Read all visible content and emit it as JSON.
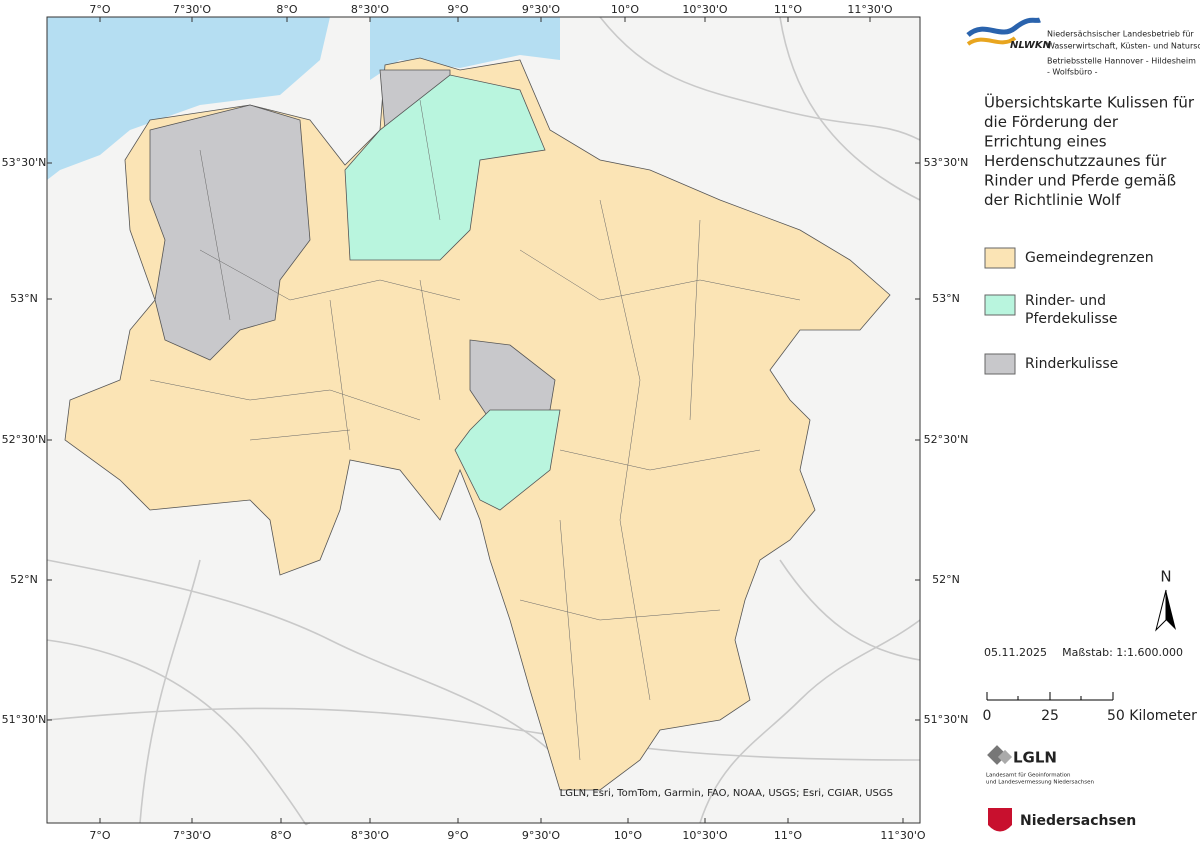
{
  "header": {
    "logo_text": "NLWKN",
    "org_lines": [
      "Niedersächsischer Landesbetrieb für",
      "Wasserwirtschaft, Küsten- und Naturschutz",
      "Betriebsstelle Hannover - Hildesheim",
      "- Wolfsbüro -"
    ]
  },
  "map": {
    "longitude_labels": [
      "7°O",
      "7°30'O",
      "8°O",
      "8°30'O",
      "9°O",
      "9°30'O",
      "10°O",
      "10°30'O",
      "11°O",
      "11°30'O"
    ],
    "latitude_labels": [
      "53°30'N",
      "53°N",
      "52°30'N",
      "52°N",
      "51°30'N"
    ],
    "attribution": "LGLN, Esri, TomTom, Garmin, FAO, NOAA, USGS; Esri, CGIAR, USGS"
  },
  "title_lines": [
    "Übersichtskarte Kulissen für",
    "die Förderung der",
    "Errichtung eines",
    "Herdenschutzzaunes für",
    "Rinder und Pferde gemäß",
    "der Richtlinie Wolf"
  ],
  "legend": [
    {
      "label_lines": [
        "Gemeindegrenzen"
      ],
      "color": "#fbe4b5"
    },
    {
      "label_lines": [
        "Rinder- und",
        "Pferdekulisse"
      ],
      "color": "#b9f5de"
    },
    {
      "label_lines": [
        "Rinderkulisse"
      ],
      "color": "#c8c8cb"
    }
  ],
  "date": "05.11.2025",
  "scale": "Maßstab: 1:1.600.000",
  "north": "N",
  "scale_bar": [
    "0",
    "25",
    "50 Kilometer"
  ],
  "footer": {
    "lgln": "LGLN",
    "lgln_sub": [
      "Landesamt für Geoinformation",
      "und Landesvermessung Niedersachsen"
    ],
    "state": "Niedersachsen"
  }
}
